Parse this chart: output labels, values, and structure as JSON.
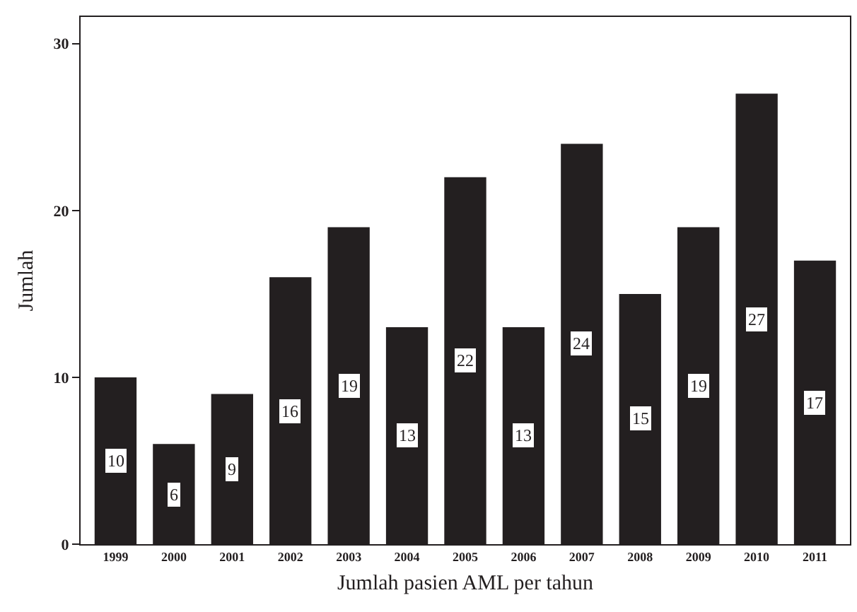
{
  "chart_data": {
    "type": "bar",
    "xlabel": "Jumlah pasien AML per tahun",
    "ylabel": "Jumlah",
    "categories": [
      "1999",
      "2000",
      "2001",
      "2002",
      "2003",
      "2004",
      "2005",
      "2006",
      "2007",
      "2008",
      "2009",
      "2010",
      "2011"
    ],
    "values": [
      10,
      6,
      9,
      16,
      19,
      13,
      22,
      13,
      24,
      15,
      19,
      27,
      17
    ],
    "color": "#231f20",
    "ylim": [
      0,
      31.6
    ],
    "yticks": [
      0,
      10,
      20,
      30
    ],
    "grid": false,
    "legend": false,
    "data_labels": true
  }
}
